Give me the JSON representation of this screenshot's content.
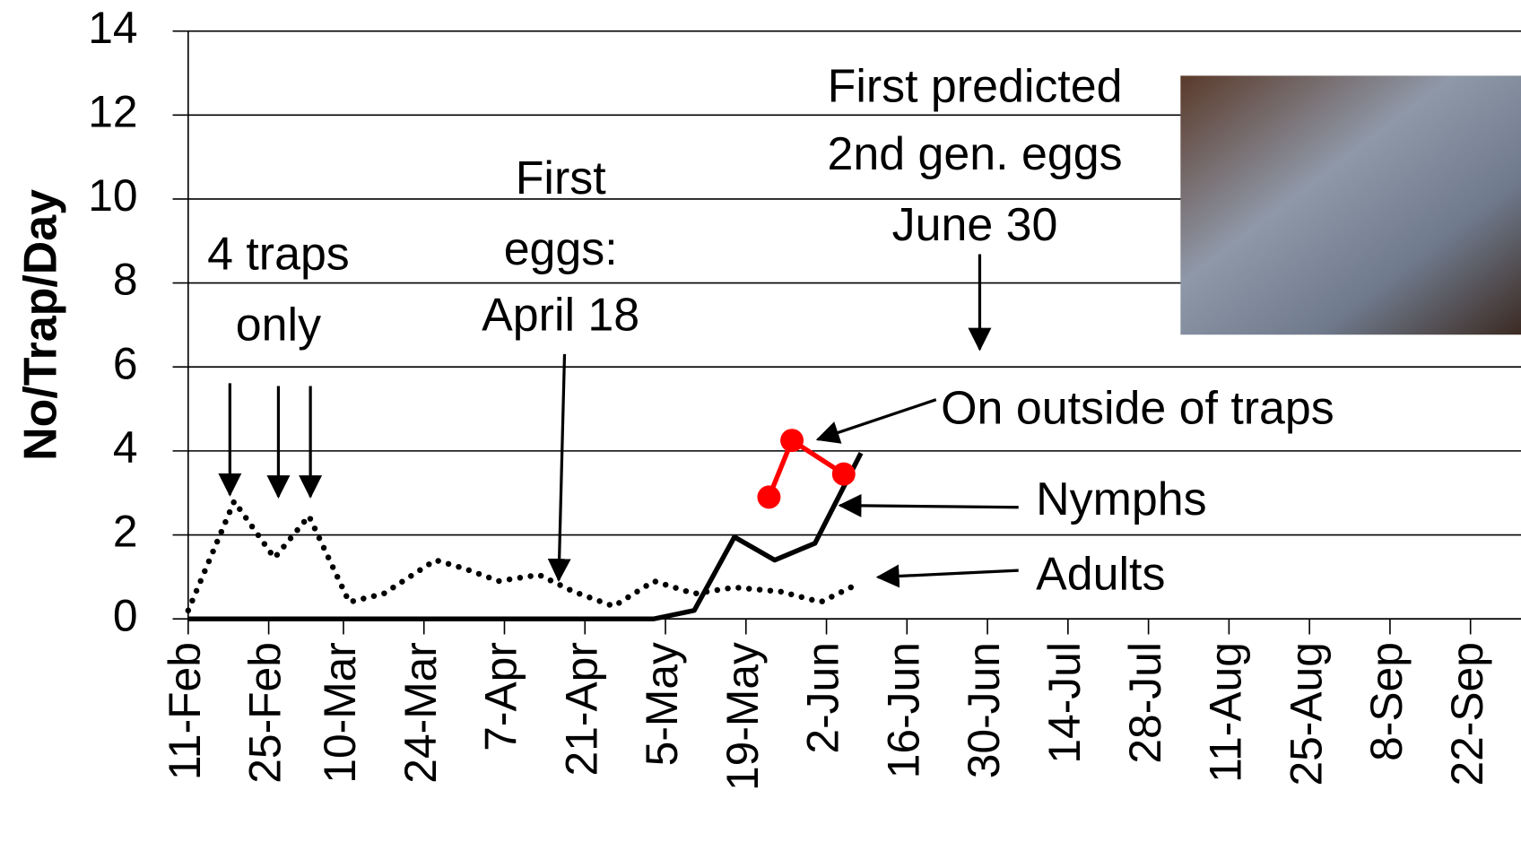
{
  "chart_data": {
    "type": "line",
    "y_label": "No/Trap/Day",
    "ylim": [
      0,
      14
    ],
    "yticks": [
      0,
      2,
      4,
      6,
      8,
      10,
      12,
      14
    ],
    "grid": true,
    "xlim": [
      42,
      275
    ],
    "xticks": [
      {
        "value": 42,
        "label": "11-Feb"
      },
      {
        "value": 56,
        "label": "25-Feb"
      },
      {
        "value": 69,
        "label": "10-Mar"
      },
      {
        "value": 83,
        "label": "24-Mar"
      },
      {
        "value": 97,
        "label": "7-Apr"
      },
      {
        "value": 111,
        "label": "21-Apr"
      },
      {
        "value": 125,
        "label": "5-May"
      },
      {
        "value": 139,
        "label": "19-May"
      },
      {
        "value": 153,
        "label": "2-Jun"
      },
      {
        "value": 167,
        "label": "16-Jun"
      },
      {
        "value": 181,
        "label": "30-Jun"
      },
      {
        "value": 195,
        "label": "14-Jul"
      },
      {
        "value": 209,
        "label": "28-Jul"
      },
      {
        "value": 223,
        "label": "11-Aug"
      },
      {
        "value": 237,
        "label": "25-Aug"
      },
      {
        "value": 251,
        "label": "8-Sep"
      },
      {
        "value": 265,
        "label": "22-Sep"
      }
    ],
    "series": [
      {
        "name": "Adults",
        "color": "#000000",
        "style": "dotted",
        "markers": false,
        "x": [
          42,
          50,
          57,
          63,
          70,
          76,
          85,
          90,
          96,
          103,
          109,
          116,
          123,
          130,
          137,
          145,
          152,
          158
        ],
        "values": [
          0.2,
          2.8,
          1.45,
          2.45,
          0.4,
          0.6,
          1.4,
          1.2,
          0.9,
          1.05,
          0.65,
          0.3,
          0.9,
          0.6,
          0.75,
          0.65,
          0.4,
          0.8
        ]
      },
      {
        "name": "Nymphs",
        "color": "#000000",
        "style": "solid",
        "markers": false,
        "x": [
          42,
          123,
          130,
          137,
          144,
          151,
          159
        ],
        "values": [
          0,
          0,
          0.2,
          1.95,
          1.4,
          1.8,
          3.95
        ]
      },
      {
        "name": "On outside of traps",
        "color": "#ff0000",
        "style": "solid",
        "markers": true,
        "x": [
          143,
          147,
          156
        ],
        "values": [
          2.9,
          4.25,
          3.45
        ]
      }
    ],
    "annotations": [
      {
        "lines": [
          "4 traps",
          "only"
        ]
      },
      {
        "lines": [
          "First",
          "eggs:",
          "April 18"
        ]
      },
      {
        "lines": [
          "First predicted",
          "2nd gen. eggs",
          "June 30"
        ]
      }
    ]
  }
}
